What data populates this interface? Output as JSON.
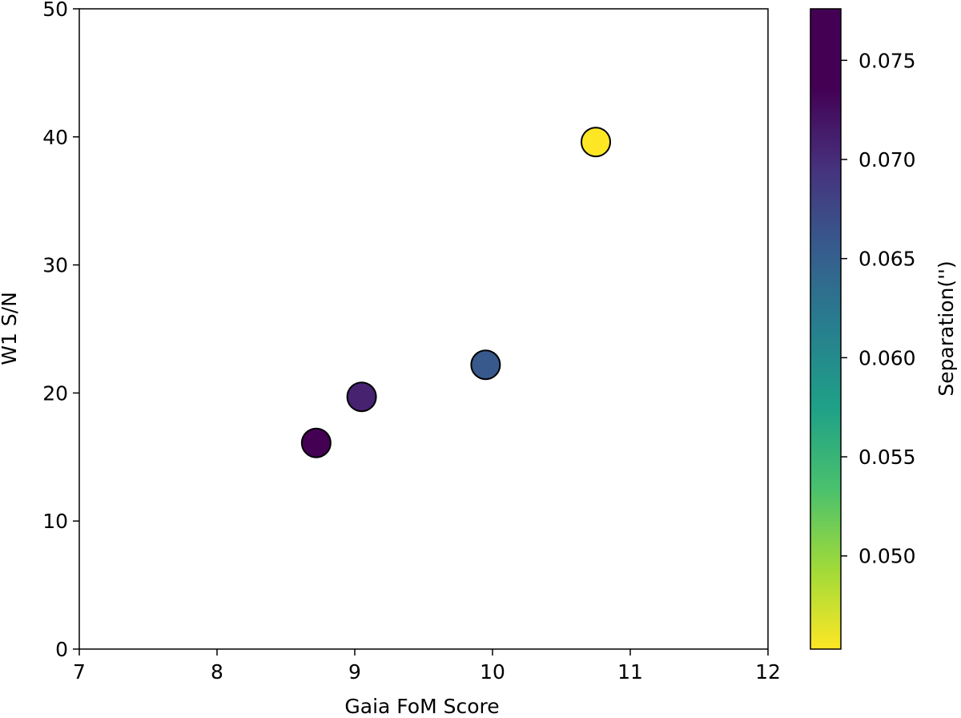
{
  "chart_data": {
    "type": "scatter",
    "xlabel": "Gaia FoM Score",
    "ylabel": "W1 S/N",
    "xlim": [
      7,
      12
    ],
    "ylim": [
      0,
      50
    ],
    "xticks": [
      7,
      8,
      9,
      10,
      11,
      12
    ],
    "yticks": [
      0,
      10,
      20,
      30,
      40,
      50
    ],
    "points": [
      {
        "x": 8.72,
        "y": 16.1,
        "c": 0.0776
      },
      {
        "x": 9.05,
        "y": 19.7,
        "c": 0.0745
      },
      {
        "x": 9.95,
        "y": 22.2,
        "c": 0.0685
      },
      {
        "x": 10.75,
        "y": 39.6,
        "c": 0.0453
      }
    ],
    "marker_edge_color": "#000000",
    "colorbar": {
      "label": "Separation('')",
      "colormap": "viridis",
      "range": [
        0.0453,
        0.0776
      ],
      "ticks": [
        0.05,
        0.055,
        0.06,
        0.065,
        0.07,
        0.075
      ],
      "tick_labels": [
        "0.050",
        "0.055",
        "0.060",
        "0.065",
        "0.070",
        "0.075"
      ],
      "orientation": "vertical",
      "min_at": "bottom"
    },
    "grid": false,
    "legend": "none"
  }
}
